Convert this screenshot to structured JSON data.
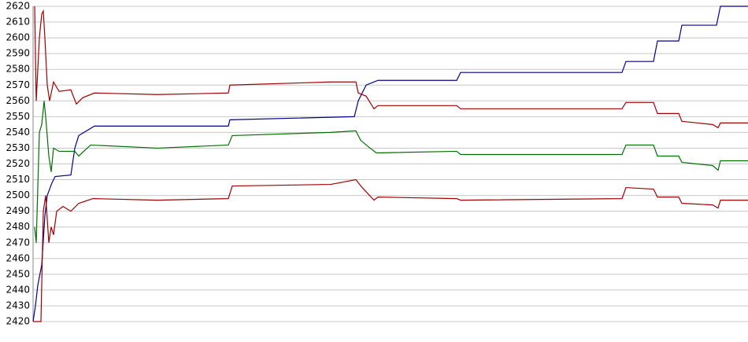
{
  "chart_data": {
    "type": "line",
    "xlim": [
      0,
      908
    ],
    "ylim": [
      2420,
      2620
    ],
    "yticks": [
      2420,
      2430,
      2440,
      2450,
      2460,
      2470,
      2480,
      2490,
      2500,
      2510,
      2520,
      2530,
      2540,
      2550,
      2560,
      2570,
      2580,
      2590,
      2600,
      2610,
      2620
    ],
    "grid": true,
    "series": [
      {
        "color": "#00008b",
        "x": [
          0,
          3,
          6,
          11,
          15,
          18,
          24,
          28,
          48,
          53,
          58,
          78,
          248,
          250,
          408,
          413,
          423,
          438,
          538,
          543,
          748,
          753,
          788,
          793,
          820,
          824,
          868,
          873,
          908
        ],
        "values": [
          2420,
          2430,
          2443,
          2456,
          2487,
          2500,
          2508,
          2512,
          2513,
          2530,
          2538,
          2544,
          2544,
          2548,
          2550,
          2560,
          2570,
          2573,
          2573,
          2578,
          2578,
          2585,
          2585,
          2598,
          2598,
          2608,
          2608,
          2620,
          2620
        ]
      },
      {
        "color": "#a00000",
        "x": [
          2,
          4,
          8,
          11,
          13,
          15,
          18,
          21,
          26,
          33,
          48,
          55,
          63,
          78,
          158,
          248,
          250,
          378,
          410,
          413,
          423,
          433,
          438,
          538,
          543,
          748,
          753,
          788,
          793,
          820,
          824,
          863,
          870,
          873,
          908
        ],
        "values": [
          2620,
          2560,
          2600,
          2615,
          2617,
          2600,
          2570,
          2560,
          2572,
          2566,
          2567,
          2558,
          2562,
          2565,
          2564,
          2565,
          2570,
          2572,
          2572,
          2565,
          2563,
          2555,
          2557,
          2557,
          2555,
          2555,
          2559,
          2559,
          2552,
          2552,
          2547,
          2545,
          2543,
          2546,
          2546
        ]
      },
      {
        "color": "#007000",
        "x": [
          2,
          4,
          8,
          11,
          14,
          16,
          20,
          23,
          26,
          33,
          53,
          58,
          73,
          158,
          248,
          253,
          378,
          410,
          416,
          428,
          436,
          538,
          543,
          748,
          753,
          788,
          793,
          820,
          824,
          863,
          870,
          873,
          908
        ],
        "values": [
          2480,
          2470,
          2540,
          2545,
          2560,
          2550,
          2525,
          2515,
          2530,
          2528,
          2528,
          2525,
          2532,
          2530,
          2532,
          2538,
          2540,
          2541,
          2535,
          2530,
          2527,
          2528,
          2526,
          2526,
          2532,
          2532,
          2525,
          2525,
          2521,
          2519,
          2516,
          2522,
          2522
        ]
      },
      {
        "color": "#a00000",
        "x": [
          0,
          10,
          13,
          16,
          20,
          23,
          26,
          30,
          38,
          48,
          58,
          76,
          158,
          248,
          253,
          378,
          410,
          418,
          433,
          438,
          538,
          543,
          748,
          753,
          788,
          793,
          820,
          824,
          863,
          870,
          873,
          908
        ],
        "values": [
          2420,
          2420,
          2490,
          2500,
          2470,
          2480,
          2475,
          2490,
          2493,
          2490,
          2495,
          2498,
          2497,
          2498,
          2506,
          2507,
          2510,
          2505,
          2497,
          2499,
          2498,
          2497,
          2498,
          2505,
          2504,
          2499,
          2499,
          2495,
          2494,
          2492,
          2497,
          2497
        ]
      }
    ]
  }
}
